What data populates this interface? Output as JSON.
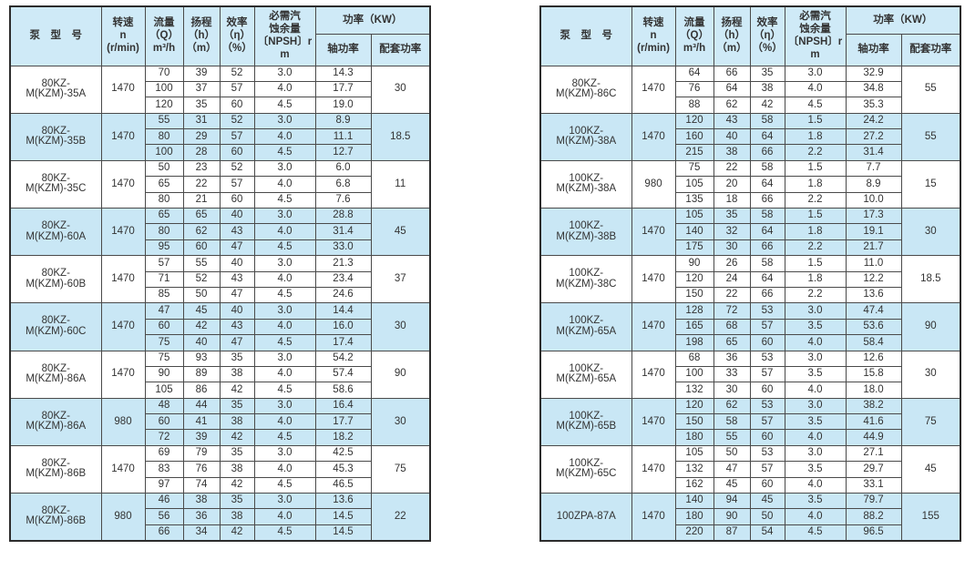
{
  "colors": {
    "row_alt": "#c9e7f5",
    "header_bg": "#cfeaf7",
    "border_inner": "#4a4a4a",
    "border_outer": "#2c2c2c",
    "text": "#333333",
    "page_bg": "#ffffff"
  },
  "header": {
    "model": "泵　型　号",
    "speed_lines": [
      "转速",
      "n",
      "(r/min)"
    ],
    "flow_lines": [
      "流量",
      "（Q）",
      "m³/h"
    ],
    "head_lines": [
      "扬程",
      "（h）",
      "（m）"
    ],
    "eff_lines": [
      "效率",
      "（η）",
      "（%）"
    ],
    "npsh_lines": [
      "必需汽",
      "蚀余量",
      "〔NPSH〕r",
      "m"
    ],
    "power_group": "功率（KW）",
    "shaft_power": "轴功率",
    "matched_power": "配套功率"
  },
  "tables": [
    {
      "groups": [
        {
          "model": "80KZ-M(KZM)-35A",
          "speed": "1470",
          "rows": [
            [
              "70",
              "39",
              "52",
              "3.0",
              "14.3"
            ],
            [
              "100",
              "37",
              "57",
              "4.0",
              "17.7"
            ],
            [
              "120",
              "35",
              "60",
              "4.5",
              "19.0"
            ]
          ],
          "matched": "30"
        },
        {
          "model": "80KZ-M(KZM)-35B",
          "speed": "1470",
          "rows": [
            [
              "55",
              "31",
              "52",
              "3.0",
              "8.9"
            ],
            [
              "80",
              "29",
              "57",
              "4.0",
              "11.1"
            ],
            [
              "100",
              "28",
              "60",
              "4.5",
              "12.7"
            ]
          ],
          "matched": "18.5"
        },
        {
          "model": "80KZ-M(KZM)-35C",
          "speed": "1470",
          "rows": [
            [
              "50",
              "23",
              "52",
              "3.0",
              "6.0"
            ],
            [
              "65",
              "22",
              "57",
              "4.0",
              "6.8"
            ],
            [
              "80",
              "21",
              "60",
              "4.5",
              "7.6"
            ]
          ],
          "matched": "11"
        },
        {
          "model": "80KZ-M(KZM)-60A",
          "speed": "1470",
          "rows": [
            [
              "65",
              "65",
              "40",
              "3.0",
              "28.8"
            ],
            [
              "80",
              "62",
              "43",
              "4.0",
              "31.4"
            ],
            [
              "95",
              "60",
              "47",
              "4.5",
              "33.0"
            ]
          ],
          "matched": "45"
        },
        {
          "model": "80KZ-M(KZM)-60B",
          "speed": "1470",
          "rows": [
            [
              "57",
              "55",
              "40",
              "3.0",
              "21.3"
            ],
            [
              "71",
              "52",
              "43",
              "4.0",
              "23.4"
            ],
            [
              "85",
              "50",
              "47",
              "4.5",
              "24.6"
            ]
          ],
          "matched": "37"
        },
        {
          "model": "80KZ-M(KZM)-60C",
          "speed": "1470",
          "rows": [
            [
              "47",
              "45",
              "40",
              "3.0",
              "14.4"
            ],
            [
              "60",
              "42",
              "43",
              "4.0",
              "16.0"
            ],
            [
              "75",
              "40",
              "47",
              "4.5",
              "17.4"
            ]
          ],
          "matched": "30"
        },
        {
          "model": "80KZ-M(KZM)-86A",
          "speed": "1470",
          "rows": [
            [
              "75",
              "93",
              "35",
              "3.0",
              "54.2"
            ],
            [
              "90",
              "89",
              "38",
              "4.0",
              "57.4"
            ],
            [
              "105",
              "86",
              "42",
              "4.5",
              "58.6"
            ]
          ],
          "matched": "90"
        },
        {
          "model": "80KZ-M(KZM)-86A",
          "speed": "980",
          "rows": [
            [
              "48",
              "44",
              "35",
              "3.0",
              "16.4"
            ],
            [
              "60",
              "41",
              "38",
              "4.0",
              "17.7"
            ],
            [
              "72",
              "39",
              "42",
              "4.5",
              "18.2"
            ]
          ],
          "matched": "30"
        },
        {
          "model": "80KZ-M(KZM)-86B",
          "speed": "1470",
          "rows": [
            [
              "69",
              "79",
              "35",
              "3.0",
              "42.5"
            ],
            [
              "83",
              "76",
              "38",
              "4.0",
              "45.3"
            ],
            [
              "97",
              "74",
              "42",
              "4.5",
              "46.5"
            ]
          ],
          "matched": "75"
        },
        {
          "model": "80KZ-M(KZM)-86B",
          "speed": "980",
          "rows": [
            [
              "46",
              "38",
              "35",
              "3.0",
              "13.6"
            ],
            [
              "56",
              "36",
              "38",
              "4.0",
              "14.5"
            ],
            [
              "66",
              "34",
              "42",
              "4.5",
              "14.5"
            ]
          ],
          "matched": "22"
        }
      ]
    },
    {
      "groups": [
        {
          "model": "80KZ-M(KZM)-86C",
          "speed": "1470",
          "rows": [
            [
              "64",
              "66",
              "35",
              "3.0",
              "32.9"
            ],
            [
              "76",
              "64",
              "38",
              "4.0",
              "34.8"
            ],
            [
              "88",
              "62",
              "42",
              "4.5",
              "35.3"
            ]
          ],
          "matched": "55"
        },
        {
          "model": "100KZ-M(KZM)-38A",
          "speed": "1470",
          "rows": [
            [
              "120",
              "43",
              "58",
              "1.5",
              "24.2"
            ],
            [
              "160",
              "40",
              "64",
              "1.8",
              "27.2"
            ],
            [
              "215",
              "38",
              "66",
              "2.2",
              "31.4"
            ]
          ],
          "matched": "55"
        },
        {
          "model": "100KZ-M(KZM)-38A",
          "speed": "980",
          "rows": [
            [
              "75",
              "22",
              "58",
              "1.5",
              "7.7"
            ],
            [
              "105",
              "20",
              "64",
              "1.8",
              "8.9"
            ],
            [
              "135",
              "18",
              "66",
              "2.2",
              "10.0"
            ]
          ],
          "matched": "15"
        },
        {
          "model": "100KZ-M(KZM)-38B",
          "speed": "1470",
          "rows": [
            [
              "105",
              "35",
              "58",
              "1.5",
              "17.3"
            ],
            [
              "140",
              "32",
              "64",
              "1.8",
              "19.1"
            ],
            [
              "175",
              "30",
              "66",
              "2.2",
              "21.7"
            ]
          ],
          "matched": "30"
        },
        {
          "model": "100KZ-M(KZM)-38C",
          "speed": "1470",
          "rows": [
            [
              "90",
              "26",
              "58",
              "1.5",
              "11.0"
            ],
            [
              "120",
              "24",
              "64",
              "1.8",
              "12.2"
            ],
            [
              "150",
              "22",
              "66",
              "2.2",
              "13.6"
            ]
          ],
          "matched": "18.5"
        },
        {
          "model": "100KZ-M(KZM)-65A",
          "speed": "1470",
          "rows": [
            [
              "128",
              "72",
              "53",
              "3.0",
              "47.4"
            ],
            [
              "165",
              "68",
              "57",
              "3.5",
              "53.6"
            ],
            [
              "198",
              "65",
              "60",
              "4.0",
              "58.4"
            ]
          ],
          "matched": "90"
        },
        {
          "model": "100KZ-M(KZM)-65A",
          "speed": "1470",
          "rows": [
            [
              "68",
              "36",
              "53",
              "3.0",
              "12.6"
            ],
            [
              "100",
              "33",
              "57",
              "3.5",
              "15.8"
            ],
            [
              "132",
              "30",
              "60",
              "4.0",
              "18.0"
            ]
          ],
          "matched": "30"
        },
        {
          "model": "100KZ-M(KZM)-65B",
          "speed": "1470",
          "rows": [
            [
              "120",
              "62",
              "53",
              "3.0",
              "38.2"
            ],
            [
              "150",
              "58",
              "57",
              "3.5",
              "41.6"
            ],
            [
              "180",
              "55",
              "60",
              "4.0",
              "44.9"
            ]
          ],
          "matched": "75"
        },
        {
          "model": "100KZ-M(KZM)-65C",
          "speed": "1470",
          "rows": [
            [
              "105",
              "50",
              "53",
              "3.0",
              "27.1"
            ],
            [
              "132",
              "47",
              "57",
              "3.5",
              "29.7"
            ],
            [
              "162",
              "45",
              "60",
              "4.0",
              "33.1"
            ]
          ],
          "matched": "45"
        },
        {
          "model": "100ZPA-87A",
          "speed": "1470",
          "rows": [
            [
              "140",
              "94",
              "45",
              "3.5",
              "79.7"
            ],
            [
              "180",
              "90",
              "50",
              "4.0",
              "88.2"
            ],
            [
              "220",
              "87",
              "54",
              "4.5",
              "96.5"
            ]
          ],
          "matched": "155"
        }
      ]
    }
  ]
}
